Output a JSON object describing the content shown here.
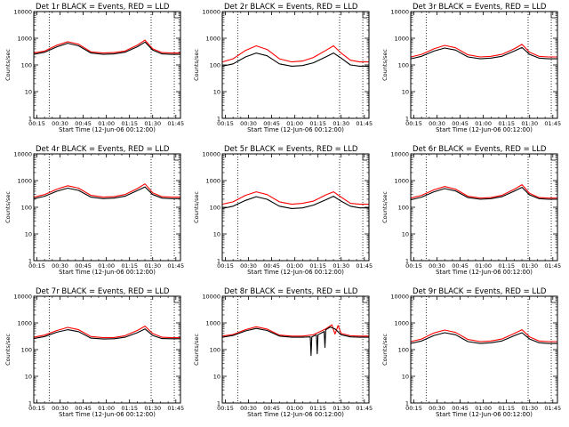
{
  "figure": {
    "panel_title_suffix": "BLACK = Events, RED = LLD",
    "xlabel": "Start Time (12-Jun-06 00:12:00)",
    "ylabel": "Counts/sec",
    "colors": {
      "events": "#000000",
      "lld": "#ff0000",
      "axes": "#000000",
      "background": "#ffffff"
    }
  },
  "chart_data": [
    {
      "type": "line",
      "detector": "Det 1r",
      "title": "Det 1r BLACK = Events, RED = LLD",
      "xlabel": "Start Time (12-Jun-06 00:12:00)",
      "ylabel": "Counts/sec",
      "yscale": "log",
      "xlim": [
        13,
        108
      ],
      "ylim": [
        1,
        10000
      ],
      "xticks": [
        "00:15",
        "00:30",
        "00:45",
        "01:00",
        "01:15",
        "01:30",
        "01:45"
      ],
      "yticks": [
        "1",
        "10",
        "100",
        "1000",
        "10000"
      ],
      "vlines": [
        23,
        89,
        104
      ],
      "series": [
        {
          "name": "Events",
          "color": "#000000",
          "x": [
            13,
            20,
            28,
            35,
            42,
            50,
            58,
            65,
            72,
            80,
            85,
            90,
            96,
            102,
            108
          ],
          "y": [
            250,
            300,
            480,
            650,
            520,
            280,
            250,
            260,
            300,
            480,
            720,
            360,
            260,
            250,
            250
          ]
        },
        {
          "name": "LLD",
          "color": "#ff0000",
          "x": [
            13,
            20,
            28,
            35,
            42,
            50,
            58,
            65,
            72,
            80,
            85,
            90,
            96,
            102,
            108
          ],
          "y": [
            280,
            330,
            550,
            740,
            600,
            310,
            280,
            290,
            330,
            550,
            850,
            400,
            290,
            280,
            280
          ]
        }
      ]
    },
    {
      "type": "line",
      "detector": "Det 2r",
      "title": "Det 2r BLACK = Events, RED = LLD",
      "xlabel": "Start Time (12-Jun-06 00:12:00)",
      "ylabel": "Counts/sec",
      "yscale": "log",
      "xlim": [
        13,
        108
      ],
      "ylim": [
        1,
        10000
      ],
      "xticks": [
        "00:15",
        "00:30",
        "00:45",
        "01:00",
        "01:15",
        "01:30",
        "01:45"
      ],
      "yticks": [
        "1",
        "10",
        "100",
        "1000",
        "10000"
      ],
      "vlines": [
        23,
        89,
        104
      ],
      "series": [
        {
          "name": "Events",
          "color": "#000000",
          "x": [
            13,
            20,
            28,
            35,
            42,
            50,
            58,
            65,
            72,
            80,
            85,
            90,
            96,
            102,
            108
          ],
          "y": [
            90,
            110,
            200,
            280,
            220,
            110,
            90,
            95,
            120,
            200,
            280,
            180,
            100,
            90,
            90
          ]
        },
        {
          "name": "LLD",
          "color": "#ff0000",
          "x": [
            13,
            20,
            28,
            35,
            42,
            50,
            58,
            65,
            72,
            80,
            85,
            90,
            96,
            102,
            108
          ],
          "y": [
            130,
            170,
            350,
            520,
            380,
            170,
            130,
            140,
            190,
            350,
            520,
            280,
            150,
            130,
            130
          ]
        }
      ]
    },
    {
      "type": "line",
      "detector": "Det 3r",
      "title": "Det 3r BLACK = Events, RED = LLD",
      "xlabel": "Start Time (12-Jun-06 00:12:00)",
      "ylabel": "Counts/sec",
      "yscale": "log",
      "xlim": [
        13,
        108
      ],
      "ylim": [
        1,
        10000
      ],
      "xticks": [
        "00:15",
        "00:30",
        "00:45",
        "01:00",
        "01:15",
        "01:30",
        "01:45"
      ],
      "yticks": [
        "1",
        "10",
        "100",
        "1000",
        "10000"
      ],
      "vlines": [
        23,
        89,
        104
      ],
      "series": [
        {
          "name": "Events",
          "color": "#000000",
          "x": [
            13,
            20,
            28,
            35,
            42,
            50,
            58,
            65,
            72,
            80,
            85,
            90,
            96,
            102,
            108
          ],
          "y": [
            170,
            210,
            330,
            430,
            360,
            200,
            170,
            180,
            210,
            330,
            450,
            250,
            180,
            170,
            170
          ]
        },
        {
          "name": "LLD",
          "color": "#ff0000",
          "x": [
            13,
            20,
            28,
            35,
            42,
            50,
            58,
            65,
            72,
            80,
            85,
            90,
            96,
            102,
            108
          ],
          "y": [
            200,
            250,
            400,
            540,
            440,
            240,
            200,
            210,
            250,
            400,
            590,
            300,
            210,
            200,
            200
          ]
        }
      ]
    },
    {
      "type": "line",
      "detector": "Det 4r",
      "title": "Det 4r BLACK = Events, RED = LLD",
      "xlabel": "Start Time (12-Jun-06 00:12:00)",
      "ylabel": "Counts/sec",
      "yscale": "log",
      "xlim": [
        13,
        108
      ],
      "ylim": [
        1,
        10000
      ],
      "xticks": [
        "00:15",
        "00:30",
        "00:45",
        "01:00",
        "01:15",
        "01:30",
        "01:45"
      ],
      "yticks": [
        "1",
        "10",
        "100",
        "1000",
        "10000"
      ],
      "vlines": [
        23,
        89,
        104
      ],
      "series": [
        {
          "name": "Events",
          "color": "#000000",
          "x": [
            13,
            20,
            28,
            35,
            42,
            50,
            58,
            65,
            72,
            80,
            85,
            90,
            96,
            102,
            108
          ],
          "y": [
            210,
            260,
            400,
            520,
            430,
            240,
            210,
            220,
            260,
            420,
            580,
            300,
            220,
            210,
            210
          ]
        },
        {
          "name": "LLD",
          "color": "#ff0000",
          "x": [
            13,
            20,
            28,
            35,
            42,
            50,
            58,
            65,
            72,
            80,
            85,
            90,
            96,
            102,
            108
          ],
          "y": [
            240,
            300,
            480,
            640,
            520,
            280,
            240,
            250,
            300,
            500,
            750,
            350,
            250,
            240,
            240
          ]
        }
      ]
    },
    {
      "type": "line",
      "detector": "Det 5r",
      "title": "Det 5r BLACK = Events, RED = LLD",
      "xlabel": "Start Time (12-Jun-06 00:12:00)",
      "ylabel": "Counts/sec",
      "yscale": "log",
      "xlim": [
        13,
        108
      ],
      "ylim": [
        1,
        10000
      ],
      "xticks": [
        "00:15",
        "00:30",
        "00:45",
        "01:00",
        "01:15",
        "01:30",
        "01:45"
      ],
      "yticks": [
        "1",
        "10",
        "100",
        "1000",
        "10000"
      ],
      "vlines": [
        23,
        89,
        104
      ],
      "series": [
        {
          "name": "Events",
          "color": "#000000",
          "x": [
            13,
            20,
            28,
            35,
            42,
            50,
            58,
            65,
            72,
            80,
            85,
            90,
            96,
            102,
            108
          ],
          "y": [
            90,
            110,
            180,
            250,
            200,
            110,
            90,
            95,
            120,
            190,
            260,
            170,
            110,
            95,
            95
          ]
        },
        {
          "name": "LLD",
          "color": "#ff0000",
          "x": [
            13,
            20,
            28,
            35,
            42,
            50,
            58,
            65,
            72,
            80,
            85,
            90,
            96,
            102,
            108
          ],
          "y": [
            130,
            160,
            280,
            380,
            300,
            160,
            130,
            140,
            170,
            290,
            380,
            240,
            140,
            130,
            130
          ]
        }
      ]
    },
    {
      "type": "line",
      "detector": "Det 6r",
      "title": "Det 6r BLACK = Events, RED = LLD",
      "xlabel": "Start Time (12-Jun-06 00:12:00)",
      "ylabel": "Counts/sec",
      "yscale": "log",
      "xlim": [
        13,
        108
      ],
      "ylim": [
        1,
        10000
      ],
      "xticks": [
        "00:15",
        "00:30",
        "00:45",
        "01:00",
        "01:15",
        "01:30",
        "01:45"
      ],
      "yticks": [
        "1",
        "10",
        "100",
        "1000",
        "10000"
      ],
      "vlines": [
        23,
        89,
        104
      ],
      "series": [
        {
          "name": "Events",
          "color": "#000000",
          "x": [
            13,
            20,
            28,
            35,
            42,
            50,
            58,
            65,
            72,
            80,
            85,
            90,
            96,
            102,
            108
          ],
          "y": [
            190,
            240,
            380,
            500,
            410,
            230,
            200,
            210,
            250,
            400,
            560,
            290,
            210,
            200,
            200
          ]
        },
        {
          "name": "LLD",
          "color": "#ff0000",
          "x": [
            13,
            20,
            28,
            35,
            42,
            50,
            58,
            65,
            72,
            80,
            85,
            90,
            96,
            102,
            108
          ],
          "y": [
            220,
            280,
            450,
            600,
            480,
            260,
            220,
            230,
            280,
            470,
            700,
            330,
            230,
            220,
            220
          ]
        }
      ]
    },
    {
      "type": "line",
      "detector": "Det 7r",
      "title": "Det 7r BLACK = Events, RED = LLD",
      "xlabel": "Start Time (12-Jun-06 00:12:00)",
      "ylabel": "Counts/sec",
      "yscale": "log",
      "xlim": [
        13,
        108
      ],
      "ylim": [
        1,
        10000
      ],
      "xticks": [
        "00:15",
        "00:30",
        "00:45",
        "01:00",
        "01:15",
        "01:30",
        "01:45"
      ],
      "yticks": [
        "1",
        "10",
        "100",
        "1000",
        "10000"
      ],
      "vlines": [
        23,
        89,
        104
      ],
      "series": [
        {
          "name": "Events",
          "color": "#000000",
          "x": [
            13,
            20,
            28,
            35,
            42,
            50,
            58,
            65,
            72,
            80,
            85,
            90,
            96,
            102,
            108
          ],
          "y": [
            260,
            310,
            450,
            560,
            470,
            270,
            250,
            255,
            290,
            430,
            600,
            340,
            260,
            255,
            255
          ]
        },
        {
          "name": "LLD",
          "color": "#ff0000",
          "x": [
            13,
            20,
            28,
            35,
            42,
            50,
            58,
            65,
            72,
            80,
            85,
            90,
            96,
            102,
            108
          ],
          "y": [
            290,
            350,
            520,
            680,
            560,
            310,
            280,
            285,
            330,
            520,
            760,
            400,
            290,
            280,
            280
          ]
        }
      ]
    },
    {
      "type": "line",
      "detector": "Det 8r",
      "title": "Det 8r BLACK = Events, RED = LLD",
      "xlabel": "Start Time (12-Jun-06 00:12:00)",
      "ylabel": "Counts/sec",
      "yscale": "log",
      "xlim": [
        13,
        108
      ],
      "ylim": [
        1,
        10000
      ],
      "xticks": [
        "00:15",
        "00:30",
        "00:45",
        "01:00",
        "01:15",
        "01:30",
        "01:45"
      ],
      "yticks": [
        "1",
        "10",
        "100",
        "1000",
        "10000"
      ],
      "vlines": [
        23,
        89,
        104
      ],
      "series": [
        {
          "name": "Events",
          "color": "#000000",
          "x": [
            13,
            20,
            28,
            35,
            42,
            50,
            58,
            65,
            70,
            70.5,
            71,
            74,
            74.5,
            75,
            79,
            79.5,
            80,
            83,
            86,
            90,
            96,
            102,
            108
          ],
          "y": [
            290,
            340,
            500,
            620,
            520,
            320,
            290,
            290,
            300,
            60,
            300,
            360,
            70,
            360,
            480,
            120,
            560,
            700,
            600,
            360,
            300,
            290,
            290
          ]
        },
        {
          "name": "LLD",
          "color": "#ff0000",
          "x": [
            13,
            20,
            28,
            35,
            42,
            50,
            58,
            65,
            72,
            80,
            84,
            86,
            88,
            90,
            96,
            102,
            108
          ],
          "y": [
            320,
            370,
            560,
            720,
            590,
            350,
            320,
            320,
            360,
            600,
            850,
            380,
            800,
            400,
            330,
            320,
            320
          ]
        }
      ]
    },
    {
      "type": "line",
      "detector": "Det 9r",
      "title": "Det 9r BLACK = Events, RED = LLD",
      "xlabel": "Start Time (12-Jun-06 00:12:00)",
      "ylabel": "Counts/sec",
      "yscale": "log",
      "xlim": [
        13,
        108
      ],
      "ylim": [
        1,
        10000
      ],
      "xticks": [
        "00:15",
        "00:30",
        "00:45",
        "01:00",
        "01:15",
        "01:30",
        "01:45"
      ],
      "yticks": [
        "1",
        "10",
        "100",
        "1000",
        "10000"
      ],
      "vlines": [
        23,
        89,
        104
      ],
      "series": [
        {
          "name": "Events",
          "color": "#000000",
          "x": [
            13,
            20,
            28,
            35,
            42,
            50,
            58,
            65,
            72,
            80,
            85,
            90,
            96,
            102,
            108
          ],
          "y": [
            170,
            210,
            340,
            430,
            360,
            200,
            170,
            180,
            210,
            330,
            430,
            250,
            180,
            170,
            170
          ]
        },
        {
          "name": "LLD",
          "color": "#ff0000",
          "x": [
            13,
            20,
            28,
            35,
            42,
            50,
            58,
            65,
            72,
            80,
            85,
            90,
            96,
            102,
            108
          ],
          "y": [
            200,
            250,
            420,
            540,
            440,
            240,
            200,
            210,
            250,
            400,
            560,
            300,
            210,
            200,
            200
          ]
        }
      ]
    }
  ]
}
